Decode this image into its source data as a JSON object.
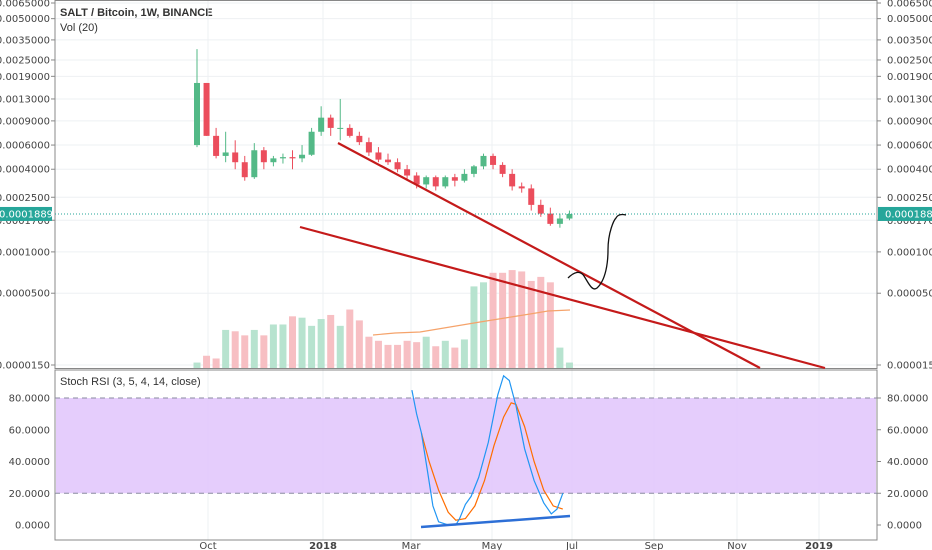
{
  "chart_data": {
    "type": "candlestick",
    "title": "SALT / Bitcoin, 1W, BINANCE",
    "volume_label": "Vol (20)",
    "price_axis": {
      "scale": "log",
      "ticks": [
        "0.0065000",
        "0.0050000",
        "0.0035000",
        "0.0025000",
        "0.0019000",
        "0.0013000",
        "0.0009000",
        "0.0006000",
        "0.0004000",
        "0.0002500",
        "0.0001700",
        "0.0001000",
        "0.0000500",
        "0.0000150"
      ]
    },
    "last_price": "0.0001889",
    "time_axis": [
      "Oct",
      "2018",
      "Mar",
      "May",
      "Jul",
      "Sep",
      "Nov",
      "2019"
    ],
    "candles": [
      {
        "o": 0.0006,
        "h": 0.003,
        "l": 0.00058,
        "c": 0.0017
      },
      {
        "o": 0.0017,
        "h": 0.0017,
        "l": 0.0007,
        "c": 0.0007
      },
      {
        "o": 0.0007,
        "h": 0.0008,
        "l": 0.00048,
        "c": 0.0005
      },
      {
        "o": 0.0005,
        "h": 0.00075,
        "l": 0.00045,
        "c": 0.00053
      },
      {
        "o": 0.00053,
        "h": 0.00065,
        "l": 0.0004,
        "c": 0.00045
      },
      {
        "o": 0.00045,
        "h": 0.0005,
        "l": 0.00033,
        "c": 0.00035
      },
      {
        "o": 0.00035,
        "h": 0.00062,
        "l": 0.00034,
        "c": 0.00055
      },
      {
        "o": 0.00055,
        "h": 0.00058,
        "l": 0.0004,
        "c": 0.00045
      },
      {
        "o": 0.00045,
        "h": 0.0005,
        "l": 0.00042,
        "c": 0.00048
      },
      {
        "o": 0.00048,
        "h": 0.00052,
        "l": 0.00044,
        "c": 0.00049
      },
      {
        "o": 0.00049,
        "h": 0.00055,
        "l": 0.0004,
        "c": 0.00048
      },
      {
        "o": 0.00048,
        "h": 0.0006,
        "l": 0.00045,
        "c": 0.00051
      },
      {
        "o": 0.00051,
        "h": 0.0008,
        "l": 0.0005,
        "c": 0.00075
      },
      {
        "o": 0.00075,
        "h": 0.00115,
        "l": 0.0007,
        "c": 0.00095
      },
      {
        "o": 0.00095,
        "h": 0.001,
        "l": 0.0007,
        "c": 0.0008
      },
      {
        "o": 0.0008,
        "h": 0.0013,
        "l": 0.00065,
        "c": 0.0008
      },
      {
        "o": 0.0008,
        "h": 0.00085,
        "l": 0.00068,
        "c": 0.0007
      },
      {
        "o": 0.0007,
        "h": 0.00075,
        "l": 0.0006,
        "c": 0.00063
      },
      {
        "o": 0.00063,
        "h": 0.00068,
        "l": 0.0005,
        "c": 0.00053
      },
      {
        "o": 0.00053,
        "h": 0.00058,
        "l": 0.00045,
        "c": 0.00047
      },
      {
        "o": 0.00047,
        "h": 0.00052,
        "l": 0.00043,
        "c": 0.00045
      },
      {
        "o": 0.00045,
        "h": 0.00048,
        "l": 0.00038,
        "c": 0.0004
      },
      {
        "o": 0.0004,
        "h": 0.00043,
        "l": 0.00034,
        "c": 0.00036
      },
      {
        "o": 0.00036,
        "h": 0.00038,
        "l": 0.00029,
        "c": 0.00031
      },
      {
        "o": 0.00031,
        "h": 0.00036,
        "l": 0.00029,
        "c": 0.00035
      },
      {
        "o": 0.00035,
        "h": 0.00036,
        "l": 0.00028,
        "c": 0.0003
      },
      {
        "o": 0.0003,
        "h": 0.00036,
        "l": 0.00029,
        "c": 0.00035
      },
      {
        "o": 0.00035,
        "h": 0.00037,
        "l": 0.0003,
        "c": 0.00033
      },
      {
        "o": 0.00033,
        "h": 0.0004,
        "l": 0.00032,
        "c": 0.00037
      },
      {
        "o": 0.00037,
        "h": 0.00043,
        "l": 0.00035,
        "c": 0.00042
      },
      {
        "o": 0.00042,
        "h": 0.00052,
        "l": 0.0004,
        "c": 0.0005
      },
      {
        "o": 0.0005,
        "h": 0.00052,
        "l": 0.0004,
        "c": 0.00043
      },
      {
        "o": 0.00043,
        "h": 0.00045,
        "l": 0.00035,
        "c": 0.00037
      },
      {
        "o": 0.00037,
        "h": 0.0004,
        "l": 0.00028,
        "c": 0.0003
      },
      {
        "o": 0.0003,
        "h": 0.00032,
        "l": 0.00027,
        "c": 0.00029
      },
      {
        "o": 0.00029,
        "h": 0.00031,
        "l": 0.0002,
        "c": 0.00022
      },
      {
        "o": 0.00022,
        "h": 0.00024,
        "l": 0.00018,
        "c": 0.00019
      },
      {
        "o": 0.00019,
        "h": 0.00021,
        "l": 0.000155,
        "c": 0.00016
      },
      {
        "o": 0.00016,
        "h": 0.00019,
        "l": 0.00015,
        "c": 0.000175
      },
      {
        "o": 0.000175,
        "h": 0.0002,
        "l": 0.00017,
        "c": 0.0001889
      }
    ],
    "volumes": [
      0.08,
      0.18,
      0.14,
      0.56,
      0.54,
      0.48,
      0.56,
      0.48,
      0.64,
      0.64,
      0.76,
      0.74,
      0.62,
      0.72,
      0.78,
      0.62,
      0.86,
      0.7,
      0.46,
      0.4,
      0.34,
      0.34,
      0.4,
      0.38,
      0.46,
      0.32,
      0.4,
      0.3,
      0.42,
      1.2,
      1.26,
      1.4,
      1.4,
      1.44,
      1.42,
      1.28,
      1.34,
      1.26,
      0.3,
      0.08
    ],
    "rsi": {
      "label": "Stoch RSI (3, 5, 4, 14, close)",
      "ticks": [
        "80.0000",
        "60.0000",
        "40.0000",
        "20.0000",
        "0.0000"
      ],
      "upper_band": 80,
      "lower_band": 20,
      "k": [
        {
          "x": 0.0,
          "v": 85
        },
        {
          "x": 0.5,
          "v": 70
        },
        {
          "x": 1.0,
          "v": 58
        },
        {
          "x": 1.6,
          "v": 35
        },
        {
          "x": 2.2,
          "v": 12
        },
        {
          "x": 2.8,
          "v": 2
        },
        {
          "x": 3.8,
          "v": 0
        },
        {
          "x": 4.6,
          "v": 0
        },
        {
          "x": 5.0,
          "v": 4
        },
        {
          "x": 5.6,
          "v": 13
        },
        {
          "x": 6.2,
          "v": 18
        },
        {
          "x": 7.0,
          "v": 30
        },
        {
          "x": 8.0,
          "v": 52
        },
        {
          "x": 9.0,
          "v": 82
        },
        {
          "x": 9.6,
          "v": 94
        },
        {
          "x": 10.2,
          "v": 91
        },
        {
          "x": 10.9,
          "v": 75
        },
        {
          "x": 11.8,
          "v": 48
        },
        {
          "x": 12.8,
          "v": 28
        },
        {
          "x": 13.8,
          "v": 14
        },
        {
          "x": 14.6,
          "v": 7
        },
        {
          "x": 15.2,
          "v": 10
        },
        {
          "x": 15.8,
          "v": 20
        }
      ],
      "d": [
        {
          "x": 1.0,
          "v": 58
        },
        {
          "x": 1.8,
          "v": 40
        },
        {
          "x": 2.8,
          "v": 22
        },
        {
          "x": 3.8,
          "v": 8
        },
        {
          "x": 4.6,
          "v": 3
        },
        {
          "x": 5.6,
          "v": 4
        },
        {
          "x": 6.6,
          "v": 12
        },
        {
          "x": 7.6,
          "v": 28
        },
        {
          "x": 8.6,
          "v": 50
        },
        {
          "x": 9.6,
          "v": 68
        },
        {
          "x": 10.4,
          "v": 77
        },
        {
          "x": 10.9,
          "v": 76
        },
        {
          "x": 11.8,
          "v": 62
        },
        {
          "x": 12.8,
          "v": 40
        },
        {
          "x": 13.8,
          "v": 22
        },
        {
          "x": 14.8,
          "v": 12
        },
        {
          "x": 15.8,
          "v": 10
        }
      ]
    },
    "annotations": {
      "upper_trendline": "red",
      "lower_trendline": "red",
      "rsi_support_line": "blue",
      "projection_path": "black"
    },
    "colors": {
      "up": "#26a69a",
      "down": "#ef5350",
      "up_solid": "#53b987",
      "down_solid": "#eb4d5c",
      "trendline": "#c41a1a",
      "rsi_k": "#2196f3",
      "rsi_d": "#ff6d00",
      "rsi_band": "#e1c4fb",
      "price_label": "#26a69a"
    }
  }
}
